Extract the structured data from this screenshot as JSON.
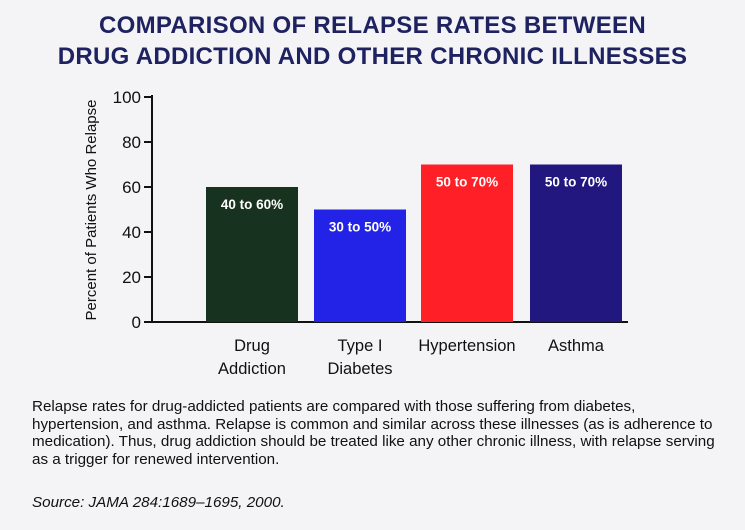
{
  "title_line1": "COMPARISON OF RELAPSE RATES BETWEEN",
  "title_line2": "DRUG ADDICTION AND OTHER CHRONIC ILLNESSES",
  "caption": "Relapse rates for drug-addicted patients are compared with those suffering from diabetes, hypertension, and asthma. Relapse is common and similar across these illnesses (as is adherence to medication). Thus, drug addiction should be treated like any other chronic illness, with relapse serving as a trigger for renewed intervention.",
  "source": "Source: JAMA 284:1689–1695, 2000.",
  "colors": {
    "title": "#1e2260",
    "drug": "#17331f",
    "diabetes": "#2323e8",
    "hypertension": "#ff1f26",
    "asthma": "#22177f"
  },
  "chart_data": {
    "type": "bar",
    "title": "",
    "xlabel": "",
    "ylabel": "Percent of Patients Who Relapse",
    "ylim": [
      0,
      100
    ],
    "yticks": [
      0,
      20,
      40,
      60,
      80,
      100
    ],
    "grid": false,
    "categories": [
      [
        "Drug",
        "Addiction"
      ],
      [
        "Type I",
        "Diabetes"
      ],
      [
        "Hypertension"
      ],
      [
        "Asthma"
      ]
    ],
    "values": [
      60,
      50,
      70,
      70
    ],
    "data_labels": [
      "40 to 60%",
      "30 to 50%",
      "50 to 70%",
      "50 to 70%"
    ],
    "bar_colors": [
      "#17331f",
      "#2323e8",
      "#ff1f26",
      "#22177f"
    ]
  }
}
